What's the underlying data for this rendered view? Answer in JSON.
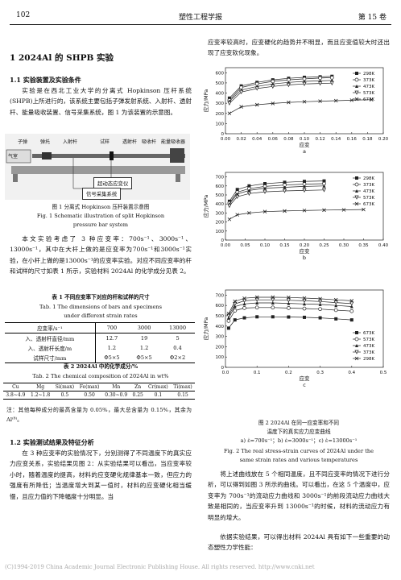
{
  "header": {
    "page_num": "102",
    "journal": "塑性工程学报",
    "volume": "第 15 卷"
  },
  "section1": {
    "title": "1   2024Al 的 SHPB 实验"
  },
  "sub11": {
    "title": "1.1   实验装置及实验条件",
    "para": "实验是在西北工业大学的分离式 Hopkinson 压杆系统(SHPB)上所进行的，该系统主要包括子弹发射系统、入射杆、透射杆、能量吸收装置、信号采集系统，图 1 为该装置的示意图。"
  },
  "fig1": {
    "labels": {
      "bullet": "子弹",
      "launch": "弹托",
      "incident": "入射杆",
      "specimen": "试样",
      "transmit": "透射杆",
      "absorber": "吸收杆",
      "energy": "能量吸收器",
      "gas": "气室",
      "dyn": "超动态应变仪",
      "dsp": "信号采集系统"
    },
    "caption_cn": "图 1   分离式 Hopkinson 压杆装置示意图",
    "caption_en1": "Fig. 1    Schematic illustration of split Hopkinson",
    "caption_en2": "pressure bar system"
  },
  "para_rates": "本文实验考虑了 3 种应变率：700s⁻¹、3000s⁻¹、13000s⁻¹，其中在大杆上做的是应变率为700s⁻¹和3000s⁻¹实验，在小杆上做的是13000s⁻¹的应变率实验。对应不同应变率的杆和试样的尺寸如表 1 所示，实验材料 2024Al 的化学成分见表 2。",
  "table1": {
    "title_cn": "表 1   不同应变率下对应的杆和试样的尺寸",
    "title_en1": "Tab. 1    The dimensions of bars and specimens",
    "title_en2": "under different strain rates",
    "head": [
      "应变率/s⁻¹",
      "700",
      "3000",
      "13000"
    ],
    "rows": [
      [
        "入、透射杆直径/mm",
        "12.7",
        "19",
        "5"
      ],
      [
        "入、透射杆长度/m",
        "1.2",
        "1.2",
        "0.4"
      ],
      [
        "试样尺寸/mm",
        "Φ5×5",
        "Φ5×5",
        "Φ2×2"
      ]
    ]
  },
  "table2": {
    "title_cn": "表 2   2024Al 中的化学成分/%",
    "title_en": "Tab. 2    The chemical composition of 2024Al in wt%",
    "head": [
      "Cu",
      "Mg",
      "Si(max)",
      "Fe(max)",
      "Mn",
      "Zn",
      "Cr(max)",
      "Ti(max)"
    ],
    "row": [
      "3.8~4.9",
      "1.2~1.8",
      "0.5",
      "0.50",
      "0.30~0.9",
      "0.25",
      "0.1",
      "0.15"
    ],
    "note": "注：其他每种成分的最高含量为 0.05%，最大总含量为 0.15%，其余为 Al⁽⁸⁾。"
  },
  "sub12": {
    "title": "1.2   实验测试结果及特征分析",
    "para": "在 3 种应变率的实验情况下，分别测得了不同温度下的真实应力应变关系，实验结果见图 2：从实验结果可以看出，当应变率较小时，随着温度的提高，材料的应变硬化规律基本一致，但应力的强度有所降低；当温度增大到某一值时，材料的应变硬化相当缓慢，且应力值的下降幅度十分明显。当"
  },
  "right_para1": "应变率较高时，应变硬化的趋势并不明显，而且应变值较大时还出现了应变软化现象。",
  "fig2": {
    "caption_cn1": "图 2   2024Al 在同一应变率和不同",
    "caption_cn2": "温度下的真实应力应变曲线",
    "caption_sub": "a) ε̇=700s⁻¹；b) ε̇=3000s⁻¹；c) ε̇=13000s⁻¹",
    "caption_en1": "Fig. 2    The real stress-strain curves of 2024Al under the",
    "caption_en2": "same strain rates and various temperatures"
  },
  "right_para2": "将上述曲线放在 5 个相同温度，且不同应变率的情况下进行分析，可以得到如图 3 所示的曲线。可以看出，在这 5 个温度中，应变率为 700s⁻¹的流动应力曲线和 3000s⁻¹的前段流动应力曲线大致是相同的，当应变率升到 13000s⁻¹的时候，材料的流动应力有明显的增大。",
  "right_para3": "依据实验结果，可以得出材料 2024Al 具有如下一些重要的动态塑性力学性能：",
  "watermark": "(C)1994-2019 China Academic Journal Electronic Publishing House. All rights reserved.    http://www.cnki.net",
  "chart_data": [
    {
      "type": "line",
      "panel_label": "a",
      "ylabel": "应力/MPa",
      "xlabel": "应变",
      "xlim": [
        0,
        0.2
      ],
      "ylim": [
        0,
        650
      ],
      "xticks": [
        "0.00",
        "0.02",
        "0.04",
        "0.06",
        "0.08",
        "0.10",
        "0.12",
        "0.14",
        "0.16",
        "0.18",
        "0.20"
      ],
      "yticks": [
        "0",
        "100",
        "200",
        "300",
        "400",
        "500",
        "600"
      ],
      "legend_position": "top-right",
      "series": [
        {
          "name": "298K",
          "x": [
            0.005,
            0.02,
            0.04,
            0.06,
            0.08,
            0.1,
            0.12,
            0.135
          ],
          "values": [
            350,
            470,
            505,
            530,
            545,
            555,
            560,
            565
          ]
        },
        {
          "name": "373K",
          "x": [
            0.005,
            0.02,
            0.04,
            0.06,
            0.08,
            0.1,
            0.12,
            0.135
          ],
          "values": [
            330,
            455,
            490,
            515,
            530,
            540,
            548,
            552
          ]
        },
        {
          "name": "473K",
          "x": [
            0.005,
            0.02,
            0.04,
            0.06,
            0.08,
            0.1,
            0.12,
            0.135
          ],
          "values": [
            320,
            430,
            465,
            490,
            505,
            515,
            520,
            525
          ]
        },
        {
          "name": "573K",
          "x": [
            0.005,
            0.02,
            0.04,
            0.06,
            0.08,
            0.1,
            0.12,
            0.135
          ],
          "values": [
            300,
            410,
            445,
            465,
            480,
            490,
            495,
            498
          ]
        },
        {
          "name": "673K",
          "x": [
            0.005,
            0.02,
            0.04,
            0.06,
            0.08,
            0.1,
            0.12,
            0.14,
            0.16,
            0.185
          ],
          "values": [
            200,
            265,
            285,
            298,
            308,
            315,
            320,
            325,
            330,
            335
          ]
        }
      ]
    },
    {
      "type": "line",
      "panel_label": "b",
      "ylabel": "应力/MPa",
      "xlabel": "应变",
      "xlim": [
        0,
        0.4
      ],
      "ylim": [
        0,
        750
      ],
      "xticks": [
        "0.00",
        "0.05",
        "0.10",
        "0.15",
        "0.20",
        "0.25",
        "0.30",
        "0.35",
        "0.40"
      ],
      "yticks": [
        "0",
        "100",
        "200",
        "300",
        "400",
        "500",
        "600",
        "700"
      ],
      "legend_position": "top-right",
      "series": [
        {
          "name": "298K",
          "x": [
            0.01,
            0.03,
            0.06,
            0.1,
            0.15,
            0.2,
            0.25
          ],
          "values": [
            430,
            560,
            600,
            625,
            640,
            650,
            655
          ]
        },
        {
          "name": "373K",
          "x": [
            0.01,
            0.03,
            0.06,
            0.1,
            0.15,
            0.2,
            0.25
          ],
          "values": [
            410,
            530,
            570,
            595,
            610,
            620,
            625
          ]
        },
        {
          "name": "473K",
          "x": [
            0.01,
            0.03,
            0.06,
            0.1,
            0.15,
            0.2,
            0.25
          ],
          "values": [
            400,
            510,
            550,
            575,
            585,
            595,
            600
          ]
        },
        {
          "name": "573K",
          "x": [
            0.01,
            0.03,
            0.06,
            0.1,
            0.15,
            0.2,
            0.25
          ],
          "values": [
            380,
            480,
            515,
            535,
            545,
            550,
            555
          ]
        },
        {
          "name": "673K",
          "x": [
            0.01,
            0.03,
            0.06,
            0.1,
            0.15,
            0.2,
            0.25,
            0.3,
            0.35
          ],
          "values": [
            230,
            280,
            300,
            315,
            322,
            328,
            332,
            335,
            338
          ]
        }
      ]
    },
    {
      "type": "line",
      "panel_label": "c",
      "ylabel": "应力/MPa",
      "xlabel": "应变",
      "xlim": [
        0,
        0.5
      ],
      "ylim": [
        0,
        750
      ],
      "xticks": [
        "0.0",
        "0.1",
        "0.2",
        "0.3",
        "0.4",
        "0.5"
      ],
      "yticks": [
        "0",
        "100",
        "200",
        "300",
        "400",
        "500",
        "600",
        "700"
      ],
      "legend_position": "bottom-right",
      "series": [
        {
          "name": "673K",
          "x": [
            0.01,
            0.03,
            0.06,
            0.1,
            0.15,
            0.2,
            0.25,
            0.3,
            0.35,
            0.4
          ],
          "values": [
            380,
            460,
            480,
            490,
            490,
            488,
            485,
            480,
            470,
            460
          ]
        },
        {
          "name": "573K",
          "x": [
            0.01,
            0.03,
            0.06,
            0.1,
            0.15,
            0.2,
            0.25,
            0.3,
            0.35,
            0.4
          ],
          "values": [
            450,
            550,
            575,
            580,
            580,
            575,
            570,
            565,
            555,
            545
          ]
        },
        {
          "name": "473K",
          "x": [
            0.01,
            0.03,
            0.06,
            0.1,
            0.15,
            0.2,
            0.25,
            0.3,
            0.35,
            0.4
          ],
          "values": [
            480,
            590,
            615,
            625,
            625,
            620,
            615,
            610,
            600,
            590
          ]
        },
        {
          "name": "373K",
          "x": [
            0.01,
            0.03,
            0.06,
            0.1,
            0.15,
            0.2,
            0.25,
            0.3,
            0.35,
            0.4
          ],
          "values": [
            500,
            615,
            645,
            655,
            655,
            650,
            645,
            638,
            628,
            618
          ]
        },
        {
          "name": "298K",
          "x": [
            0.01,
            0.03,
            0.06,
            0.1,
            0.15,
            0.2,
            0.25,
            0.3,
            0.35,
            0.4
          ],
          "values": [
            520,
            640,
            670,
            680,
            680,
            678,
            672,
            665,
            655,
            645
          ]
        }
      ]
    }
  ]
}
